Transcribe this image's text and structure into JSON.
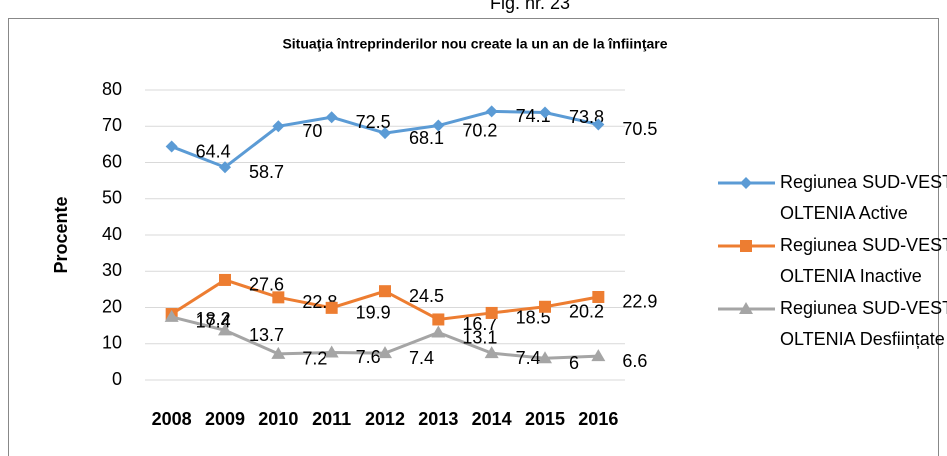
{
  "chart_data": {
    "type": "line",
    "figure_label": "Fig. nr. 23",
    "title": "Situaţia întreprinderilor nou create la un an de la înfiinţare",
    "y_label": "Procente",
    "categories": [
      "2008",
      "2009",
      "2010",
      "2011",
      "2012",
      "2013",
      "2014",
      "2015",
      "2016"
    ],
    "series": [
      {
        "name": "Regiunea SUD-VEST OLTENIA Active",
        "color": "#5b9bd5",
        "marker": "diamond",
        "values": [
          64.4,
          58.7,
          70,
          72.5,
          68.1,
          70.2,
          74.1,
          73.8,
          70.5
        ]
      },
      {
        "name": "Regiunea SUD-VEST OLTENIA Inactive",
        "color": "#ed7d31",
        "marker": "square",
        "values": [
          18.2,
          27.6,
          22.8,
          19.9,
          24.5,
          16.7,
          18.5,
          20.2,
          22.9
        ]
      },
      {
        "name": "Regiunea SUD-VEST OLTENIA Desființate",
        "color": "#a5a5a5",
        "marker": "triangle",
        "values": [
          17.4,
          13.7,
          7.2,
          7.6,
          7.4,
          13.1,
          7.4,
          6,
          6.6
        ]
      }
    ],
    "ylim": [
      0,
      80
    ],
    "yticks": [
      0,
      10,
      20,
      30,
      40,
      50,
      60,
      70,
      80
    ],
    "grid": true,
    "legend": "right"
  }
}
